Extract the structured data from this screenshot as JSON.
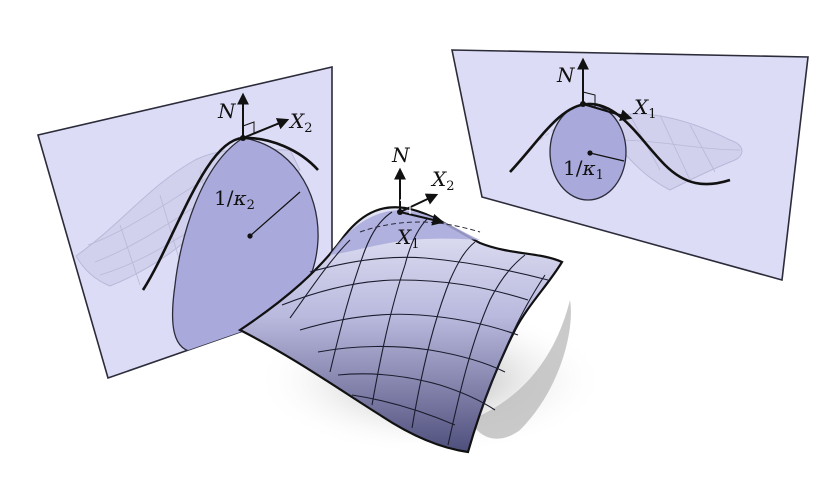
{
  "colors": {
    "plane_fill": "#dcdcf6",
    "plane_stroke": "#2b2b3a",
    "disk_fill": "#a9a9dc",
    "surface_light": "#d6d6ee",
    "surface_dark": "#5a5a86",
    "shadow": "#b8b8b8",
    "curve": "#111111"
  },
  "labels": {
    "left_plane": {
      "normal": "N",
      "tangent": "X",
      "tangent_sub": "2",
      "radius_prefix": "1/",
      "radius_kappa": "κ",
      "radius_sub": "2"
    },
    "center_surface": {
      "normal": "N",
      "tangent_a": "X",
      "tangent_a_sub": "2",
      "tangent_b": "X",
      "tangent_b_sub": "1"
    },
    "right_plane": {
      "normal": "N",
      "tangent": "X",
      "tangent_sub": "1",
      "radius_prefix": "1/",
      "radius_kappa": "κ",
      "radius_sub": "1"
    }
  }
}
